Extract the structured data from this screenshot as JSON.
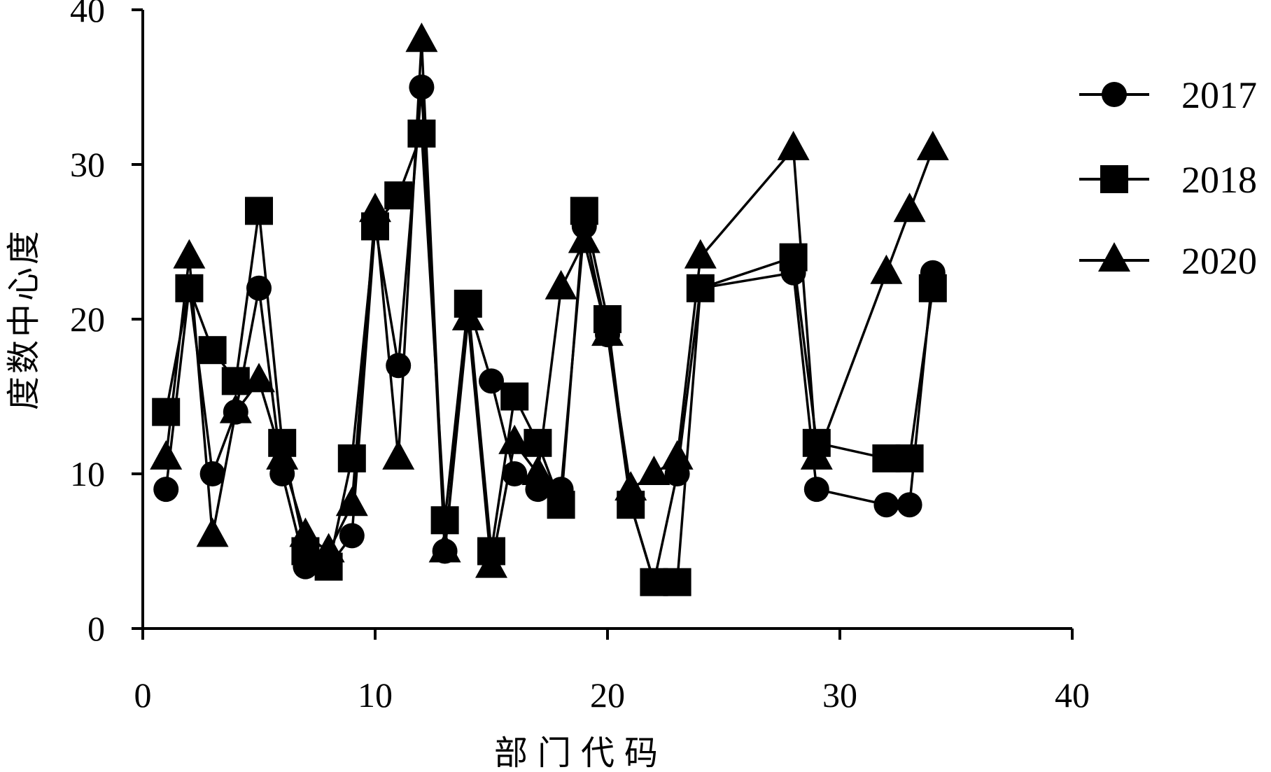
{
  "chart_data": {
    "type": "line",
    "xlabel": "部门代码",
    "ylabel": "度数中心度",
    "xlim": [
      0,
      40
    ],
    "ylim": [
      0,
      40
    ],
    "xticks": [
      0,
      10,
      20,
      30,
      40
    ],
    "yticks": [
      0,
      10,
      20,
      30,
      40
    ],
    "grid": false,
    "legend": "right",
    "color": "#000000",
    "series": [
      {
        "name": "2017",
        "marker": "circle",
        "points": [
          [
            1,
            9
          ],
          [
            2,
            22
          ],
          [
            3,
            10
          ],
          [
            4,
            14
          ],
          [
            5,
            22
          ],
          [
            6,
            10
          ],
          [
            7,
            4
          ],
          [
            8,
            4
          ],
          [
            9,
            6
          ],
          [
            10,
            26
          ],
          [
            11,
            17
          ],
          [
            12,
            35
          ],
          [
            13,
            5
          ],
          [
            14,
            21
          ],
          [
            15,
            16
          ],
          [
            16,
            10
          ],
          [
            17,
            9
          ],
          [
            18,
            9
          ],
          [
            19,
            26
          ],
          [
            20,
            19
          ],
          [
            21,
            8
          ],
          [
            22,
            3
          ],
          [
            23,
            10
          ],
          [
            24,
            22
          ],
          [
            28,
            23
          ],
          [
            29,
            9
          ],
          [
            32,
            8
          ],
          [
            33,
            8
          ],
          [
            34,
            23
          ]
        ]
      },
      {
        "name": "2018",
        "marker": "square",
        "points": [
          [
            1,
            14
          ],
          [
            2,
            22
          ],
          [
            3,
            18
          ],
          [
            4,
            16
          ],
          [
            5,
            27
          ],
          [
            6,
            12
          ],
          [
            7,
            5
          ],
          [
            8,
            4
          ],
          [
            9,
            11
          ],
          [
            10,
            26
          ],
          [
            11,
            28
          ],
          [
            12,
            32
          ],
          [
            13,
            7
          ],
          [
            14,
            21
          ],
          [
            15,
            5
          ],
          [
            16,
            15
          ],
          [
            17,
            12
          ],
          [
            18,
            8
          ],
          [
            19,
            27
          ],
          [
            20,
            20
          ],
          [
            21,
            8
          ],
          [
            22,
            3
          ],
          [
            23,
            3
          ],
          [
            24,
            22
          ],
          [
            28,
            24
          ],
          [
            29,
            12
          ],
          [
            32,
            11
          ],
          [
            33,
            11
          ],
          [
            34,
            22
          ]
        ]
      },
      {
        "name": "2020",
        "marker": "triangle",
        "points": [
          [
            1,
            11
          ],
          [
            2,
            24
          ],
          [
            3,
            6
          ],
          [
            4,
            14
          ],
          [
            5,
            16
          ],
          [
            6,
            11
          ],
          [
            7,
            6
          ],
          [
            8,
            5
          ],
          [
            9,
            8
          ],
          [
            10,
            27
          ],
          [
            11,
            11
          ],
          [
            12,
            38
          ],
          [
            13,
            5
          ],
          [
            14,
            20
          ],
          [
            15,
            4
          ],
          [
            16,
            12
          ],
          [
            17,
            10
          ],
          [
            18,
            22
          ],
          [
            19,
            25
          ],
          [
            20,
            19
          ],
          [
            21,
            9
          ],
          [
            22,
            10
          ],
          [
            23,
            11
          ],
          [
            24,
            24
          ],
          [
            28,
            31
          ],
          [
            29,
            11
          ],
          [
            32,
            23
          ],
          [
            33,
            27
          ],
          [
            34,
            31
          ]
        ]
      }
    ]
  }
}
